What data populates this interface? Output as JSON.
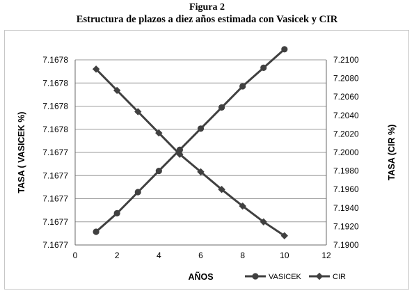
{
  "figure": {
    "number": "Figura 2",
    "title": "Estructura de plazos a diez años estimada con Vasicek y CIR"
  },
  "colors": {
    "series": "#404040",
    "grid": "#9a9a9a",
    "axis": "#6a6a6a"
  },
  "chart_data": {
    "type": "line",
    "title": "",
    "xlabel": "AÑOS",
    "ylabel_left": "TASA ( VASICEK %)",
    "ylabel_right": "TASA (CIR %)",
    "xlim": [
      0,
      12
    ],
    "x_ticks": [
      "0",
      "2",
      "4",
      "6",
      "8",
      "10",
      "12"
    ],
    "ylim_left": [
      7.167735,
      7.167805
    ],
    "y_ticks_left": [
      "7.1677",
      "7.1677",
      "7.1677",
      "7.1677",
      "7.1677",
      "7.1678",
      "7.1678",
      "7.1678",
      "7.1678"
    ],
    "ylim_right": [
      7.19,
      7.21
    ],
    "y_ticks_right": [
      "7.1900",
      "7.1920",
      "7.1940",
      "7.1960",
      "7.1980",
      "7.2000",
      "7.2020",
      "7.2040",
      "7.2060",
      "7.2080",
      "7.2100"
    ],
    "grid": "horizontal",
    "legend_position": "bottom-right",
    "series": [
      {
        "name": "VASICEK",
        "axis": "left",
        "marker": "circle",
        "x": [
          1,
          2,
          3,
          4,
          5,
          6,
          7,
          8,
          9,
          10
        ],
        "y": [
          7.16774,
          7.167747,
          7.167755,
          7.167763,
          7.167771,
          7.167779,
          7.167787,
          7.167795,
          7.167802,
          7.167809
        ]
      },
      {
        "name": "CIR",
        "axis": "right",
        "marker": "diamond",
        "x": [
          1,
          2,
          3,
          4,
          5,
          6,
          7,
          8,
          9,
          10
        ],
        "y": [
          7.209,
          7.2067,
          7.2044,
          7.2021,
          7.1998,
          7.1979,
          7.196,
          7.1942,
          7.1925,
          7.191
        ]
      }
    ]
  }
}
